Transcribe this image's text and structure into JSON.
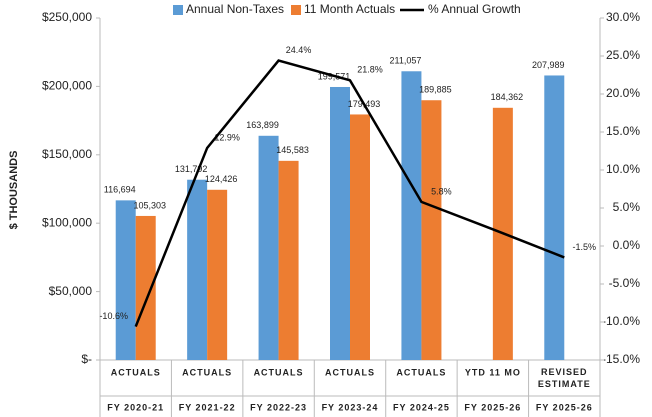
{
  "chart_data": {
    "type": "bar",
    "y_axis_label": "$ THOUSANDS",
    "categories": [
      "ACTUALS",
      "ACTUALS",
      "ACTUALS",
      "ACTUALS",
      "ACTUALS",
      "YTD 11 MO",
      "REVISED ESTIMATE"
    ],
    "fiscal_years": [
      "FY 2020-21",
      "FY 2021-22",
      "FY 2022-23",
      "FY 2023-24",
      "FY 2024-25",
      "FY 2025-26",
      "FY 2025-26"
    ],
    "series": [
      {
        "name": "Annual Non-Taxes",
        "color": "#5b9bd5",
        "kind": "bar",
        "values": [
          116694,
          131792,
          163899,
          199571,
          211057,
          null,
          207989
        ],
        "value_labels": [
          "116,694",
          "131,792",
          "163,899",
          "199,571",
          "211,057",
          null,
          "207,989"
        ]
      },
      {
        "name": "11 Month Actuals",
        "color": "#ed7d31",
        "kind": "bar",
        "values": [
          105303,
          124426,
          145583,
          179493,
          189885,
          184362,
          null
        ],
        "value_labels": [
          "105,303",
          "124,426",
          "145,583",
          "179,493",
          "189,885",
          "184,362",
          null
        ]
      },
      {
        "name": "% Annual Growth",
        "color": "#000000",
        "kind": "line",
        "axis": "y2",
        "values": [
          -10.6,
          12.9,
          24.4,
          21.8,
          5.8,
          2.2,
          -1.5
        ],
        "value_labels": [
          "-10.6%",
          "12.9%",
          "24.4%",
          "21.8%",
          "5.8%",
          null,
          "-1.5%"
        ]
      }
    ],
    "ylim": [
      0,
      250000
    ],
    "yticks": [
      {
        "value": 0,
        "label": "$-"
      },
      {
        "value": 50000,
        "label": "$50,000"
      },
      {
        "value": 100000,
        "label": "$100,000"
      },
      {
        "value": 150000,
        "label": "$150,000"
      },
      {
        "value": 200000,
        "label": "$200,000"
      },
      {
        "value": 250000,
        "label": "$250,000"
      }
    ],
    "y2lim": [
      -15,
      30
    ],
    "y2ticks": [
      {
        "value": -15,
        "label": "-15.0%"
      },
      {
        "value": -10,
        "label": "-10.0%"
      },
      {
        "value": -5,
        "label": "-5.0%"
      },
      {
        "value": 0,
        "label": "0.0%"
      },
      {
        "value": 5,
        "label": "5.0%"
      },
      {
        "value": 10,
        "label": "10.0%"
      },
      {
        "value": 15,
        "label": "15.0%"
      },
      {
        "value": 20,
        "label": "20.0%"
      },
      {
        "value": 25,
        "label": "25.0%"
      },
      {
        "value": 30,
        "label": "30.0%"
      }
    ],
    "legend": "top",
    "grid": false
  }
}
